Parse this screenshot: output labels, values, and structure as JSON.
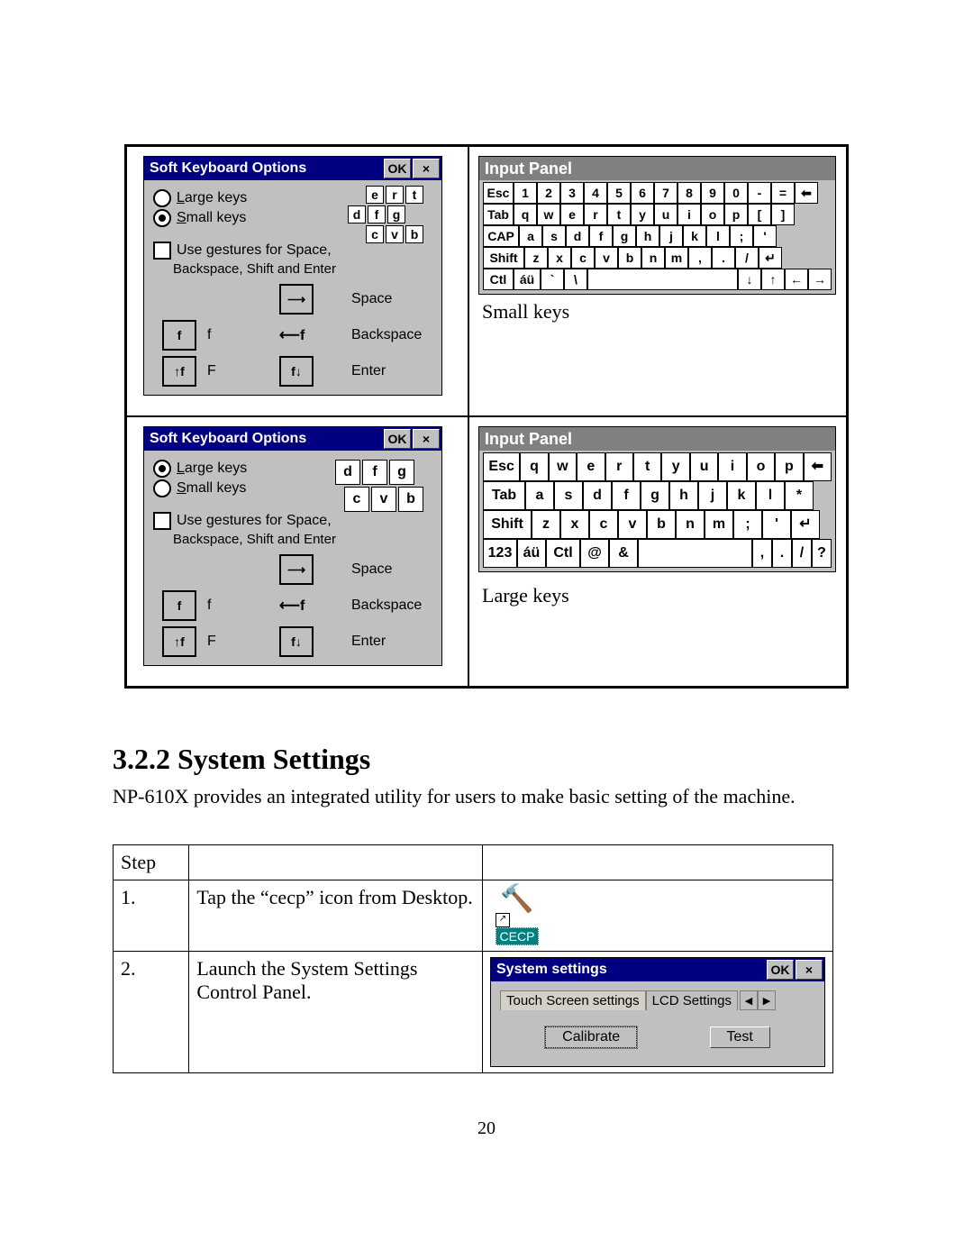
{
  "sko": {
    "title": "Soft Keyboard Options",
    "ok": "OK",
    "close": "×",
    "large_keys": "Large keys",
    "small_keys": "Small keys",
    "use_gestures_l1": "Use gestures for Space,",
    "use_gestures_l2": "Backspace, Shift and Enter",
    "gest_f": "f",
    "gest_F": "F",
    "space": "Space",
    "backspace": "Backspace",
    "enter": "Enter"
  },
  "input_panel": {
    "title": "Input Panel",
    "small_caption": "Small keys",
    "large_caption": "Large keys"
  },
  "kbd_small": {
    "row1": [
      "Esc",
      "1",
      "2",
      "3",
      "4",
      "5",
      "6",
      "7",
      "8",
      "9",
      "0",
      "-",
      "=",
      "⬅"
    ],
    "row2": [
      "Tab",
      "q",
      "w",
      "e",
      "r",
      "t",
      "y",
      "u",
      "i",
      "o",
      "p",
      "[",
      "]"
    ],
    "row3": [
      "CAP",
      "a",
      "s",
      "d",
      "f",
      "g",
      "h",
      "j",
      "k",
      "l",
      ";",
      "'"
    ],
    "row4": [
      "Shift",
      "z",
      "x",
      "c",
      "v",
      "b",
      "n",
      "m",
      ",",
      ".",
      "/",
      "↵"
    ],
    "row5": [
      "Ctl",
      "áü",
      "`",
      "\\",
      " ",
      "↓",
      "↑",
      "←",
      "→"
    ]
  },
  "kbd_large": {
    "row1": [
      "Esc",
      "q",
      "w",
      "e",
      "r",
      "t",
      "y",
      "u",
      "i",
      "o",
      "p",
      "⬅"
    ],
    "row2": [
      "Tab",
      "a",
      "s",
      "d",
      "f",
      "g",
      "h",
      "j",
      "k",
      "l",
      "*"
    ],
    "row3": [
      "Shift",
      "z",
      "x",
      "c",
      "v",
      "b",
      "n",
      "m",
      ";",
      "'",
      "↵"
    ],
    "row4": [
      "123",
      "áü",
      "Ctl",
      "@",
      "&",
      " ",
      ",",
      ".",
      "/",
      "?"
    ]
  },
  "section": {
    "heading": "3.2.2 System Settings",
    "text": "NP-610X provides an integrated utility for users to make basic setting of the machine."
  },
  "table": {
    "h_step": "Step",
    "step1_num": "1.",
    "step1_text": "Tap the “cecp” icon from Desktop.",
    "step2_num": "2.",
    "step2_text": "Launch the System Settings Control Panel."
  },
  "cecp": {
    "label": "CECP",
    "shortcut": "↗"
  },
  "ss": {
    "title": "System settings",
    "ok": "OK",
    "close": "×",
    "tab1": "Touch Screen settings",
    "tab2": "LCD Settings",
    "arrow_l": "◀",
    "arrow_r": "▶",
    "calibrate": "Calibrate",
    "test": "Test"
  },
  "page_number": "20"
}
